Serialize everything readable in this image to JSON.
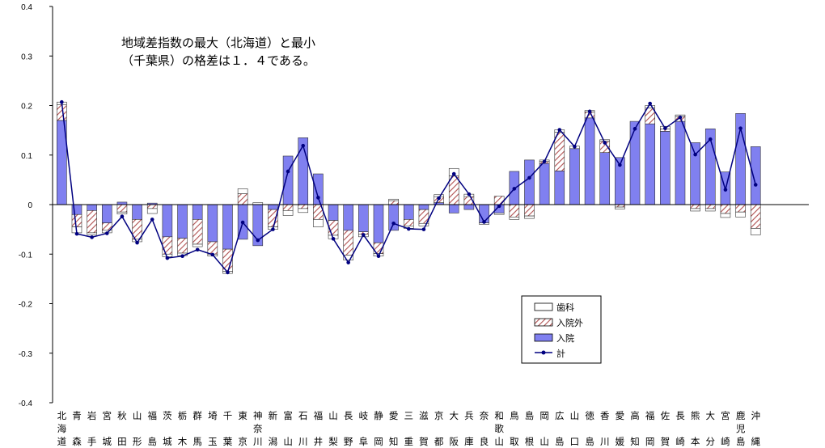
{
  "chart_data": {
    "type": "bar",
    "stacked": true,
    "annotation_lines": [
      "地域差指数の最大（北海道）と最小",
      "（千葉県）の格差は１．４である。"
    ],
    "ylim": [
      -0.4,
      0.4
    ],
    "yticks": [
      "0.4",
      "0.3",
      "0.2",
      "0.1",
      "0",
      "-0.1",
      "-0.2",
      "-0.3",
      "-0.4"
    ],
    "grid": false,
    "legend_position": "lower-right",
    "categories": [
      "北海道",
      "青森",
      "岩手",
      "宮城",
      "秋田",
      "山形",
      "福島",
      "茨城",
      "栃木",
      "群馬",
      "埼玉",
      "千葉",
      "東京",
      "神奈川",
      "新潟",
      "富山",
      "石川",
      "福井",
      "山梨",
      "長野",
      "岐阜",
      "静岡",
      "愛知",
      "三重",
      "滋賀",
      "京都",
      "大阪",
      "兵庫",
      "奈良",
      "和歌山",
      "鳥取",
      "島根",
      "岡山",
      "広島",
      "山口",
      "徳島",
      "香川",
      "愛媛",
      "高知",
      "福岡",
      "佐賀",
      "長崎",
      "熊本",
      "大分",
      "宮崎",
      "鹿児島",
      "沖縄"
    ],
    "series": [
      {
        "name": "歯科",
        "color": "#ffffff",
        "values": [
          0.005,
          -0.012,
          -0.004,
          -0.005,
          -0.004,
          -0.005,
          -0.01,
          -0.005,
          -0.005,
          -0.005,
          -0.004,
          -0.004,
          0.01,
          0.004,
          -0.005,
          -0.01,
          -0.008,
          -0.015,
          -0.007,
          -0.01,
          -0.005,
          -0.005,
          0.003,
          -0.005,
          -0.005,
          0.004,
          0.015,
          0.005,
          -0.003,
          -0.003,
          -0.005,
          -0.005,
          0.003,
          0.005,
          0.005,
          0.003,
          0.003,
          -0.004,
          0.0,
          0.005,
          0.005,
          0.003,
          -0.005,
          -0.005,
          -0.008,
          -0.01,
          -0.013
        ]
      },
      {
        "name": "入院外",
        "color": "#d08080",
        "hatch": true,
        "values": [
          0.032,
          -0.025,
          -0.045,
          -0.015,
          -0.015,
          -0.04,
          -0.008,
          -0.035,
          -0.03,
          -0.05,
          -0.025,
          -0.045,
          0.022,
          0.0,
          -0.035,
          -0.012,
          -0.008,
          -0.03,
          -0.03,
          -0.05,
          -0.005,
          -0.022,
          0.008,
          -0.013,
          -0.028,
          0.012,
          0.058,
          0.016,
          0.0,
          0.017,
          -0.025,
          -0.023,
          0.004,
          0.078,
          0.0,
          0.012,
          0.023,
          -0.005,
          0.0,
          0.032,
          0.005,
          0.01,
          -0.008,
          -0.008,
          -0.018,
          -0.015,
          -0.048
        ]
      },
      {
        "name": "入院",
        "color": "#8080f0",
        "values": [
          0.17,
          -0.02,
          -0.012,
          -0.037,
          0.005,
          -0.03,
          0.003,
          -0.065,
          -0.068,
          -0.03,
          -0.075,
          -0.09,
          -0.07,
          -0.083,
          -0.01,
          0.098,
          0.135,
          0.062,
          -0.032,
          -0.052,
          -0.055,
          -0.077,
          -0.052,
          -0.03,
          -0.01,
          0.004,
          -0.017,
          -0.01,
          -0.037,
          -0.017,
          0.067,
          0.09,
          0.083,
          0.068,
          0.113,
          0.175,
          0.105,
          0.095,
          0.168,
          0.163,
          0.148,
          0.168,
          0.125,
          0.153,
          0.066,
          0.184,
          0.117
        ]
      },
      {
        "name": "計",
        "color": "#000080",
        "values": [
          0.207,
          -0.059,
          -0.066,
          -0.058,
          -0.024,
          -0.077,
          -0.03,
          -0.108,
          -0.104,
          -0.091,
          -0.101,
          -0.137,
          -0.036,
          -0.072,
          -0.05,
          0.067,
          0.119,
          0.014,
          -0.069,
          -0.117,
          -0.061,
          -0.104,
          -0.038,
          -0.049,
          -0.05,
          0.013,
          0.062,
          0.021,
          -0.035,
          -0.003,
          0.032,
          0.054,
          0.087,
          0.151,
          0.117,
          0.188,
          0.125,
          0.08,
          0.153,
          0.204,
          0.154,
          0.176,
          0.101,
          0.132,
          0.03,
          0.154,
          0.04
        ]
      }
    ]
  }
}
